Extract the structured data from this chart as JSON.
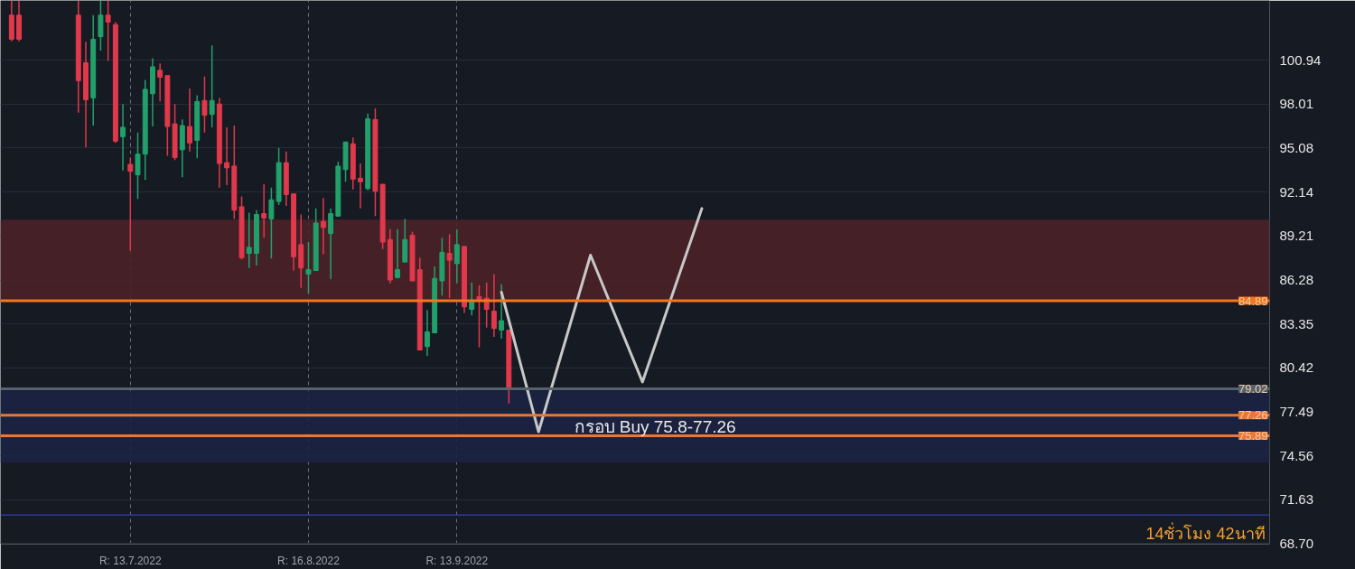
{
  "chart_data": {
    "type": "candlestick",
    "categories": [
      null,
      null,
      null,
      null,
      null,
      null,
      null,
      null,
      null,
      null,
      null,
      null,
      null,
      null,
      null,
      null,
      null,
      "R: 13.7.2022",
      null,
      null,
      null,
      null,
      null,
      null,
      null,
      null,
      null,
      null,
      null,
      null,
      null,
      null,
      null,
      null,
      null,
      null,
      null,
      null,
      null,
      null,
      null,
      "R: 16.8.2022",
      null,
      null,
      null,
      null,
      null,
      null,
      null,
      null,
      null,
      null,
      null,
      null,
      null,
      null,
      null,
      null,
      null,
      null,
      null,
      "R: 13.9.2022",
      null,
      null,
      null,
      null,
      null,
      null,
      null,
      null,
      null,
      null,
      null,
      null,
      null,
      null,
      null,
      null,
      null,
      null,
      null,
      null,
      null,
      null,
      null,
      null,
      null,
      null,
      null,
      null,
      null,
      null,
      null,
      null,
      null,
      null,
      null,
      null,
      null,
      null,
      null,
      null,
      null,
      null,
      null,
      null,
      null,
      null,
      null,
      null,
      null,
      null,
      null,
      null,
      null,
      null,
      null,
      null,
      null,
      null,
      null,
      null,
      null,
      null,
      null,
      null,
      null,
      null,
      null,
      null,
      null,
      null,
      null,
      null,
      null,
      null,
      null,
      null,
      null,
      null,
      null,
      null,
      null,
      null,
      null,
      null,
      null,
      null,
      null,
      null,
      null,
      null,
      null,
      null,
      null,
      null,
      null,
      null,
      null,
      null,
      null,
      null,
      null,
      null,
      null,
      null,
      null,
      null,
      null,
      null,
      null
    ],
    "series": [
      {
        "ohlc": [
          null,
          [
            103.95,
            104.9,
            102.2,
            102.34
          ],
          [
            103.95,
            104.9,
            102.2,
            102.34
          ],
          null,
          null,
          null,
          null,
          null,
          null,
          null,
          [
            103.95,
            104.9,
            97.45,
            99.58
          ],
          [
            100.78,
            102.17,
            95.14,
            98.31
          ],
          [
            98.43,
            103.95,
            96.58,
            102.34
          ],
          [
            102.51,
            104.9,
            101.59,
            103.95
          ],
          [
            103.95,
            104.9,
            100.9,
            103.49
          ],
          [
            103.32,
            103.49,
            95.43,
            95.55
          ],
          [
            95.84,
            98.02,
            93.59,
            96.47
          ],
          [
            93.99,
            94.45,
            88.23,
            93.53
          ],
          [
            93.3,
            96.12,
            91.69,
            94.68
          ],
          [
            94.68,
            99.63,
            92.96,
            99.0
          ],
          [
            98.71,
            101.07,
            96.52,
            100.5
          ],
          [
            100.27,
            100.73,
            98.19,
            99.81
          ],
          [
            99.92,
            99.92,
            94.57,
            96.52
          ],
          [
            96.7,
            98.02,
            94.28,
            94.45
          ],
          [
            94.97,
            96.99,
            93.13,
            96.58
          ],
          [
            96.52,
            99.06,
            94.86,
            95.43
          ],
          [
            95.6,
            98.6,
            94.4,
            98.19
          ],
          [
            98.25,
            99.86,
            96.12,
            97.27
          ],
          [
            97.33,
            101.94,
            96.47,
            98.25
          ],
          [
            98.02,
            98.43,
            92.44,
            94.05
          ],
          [
            94.11,
            96.47,
            92.61,
            93.76
          ],
          [
            93.88,
            96.58,
            90.36,
            90.94
          ],
          [
            91.17,
            91.86,
            87.66,
            87.77
          ],
          [
            88.06,
            90.77,
            87.08,
            88.46
          ],
          [
            88.06,
            90.94,
            87.25,
            90.65
          ],
          [
            90.71,
            92.67,
            89.1,
            90.42
          ],
          [
            90.36,
            92.44,
            87.72,
            91.63
          ],
          [
            91.52,
            95.09,
            91.29,
            94.11
          ],
          [
            94.11,
            94.86,
            91.23,
            91.98
          ],
          [
            92.03,
            92.03,
            86.91,
            87.83
          ],
          [
            88.64,
            90.65,
            85.76,
            87.08
          ],
          [
            86.68,
            88.81,
            85.36,
            86.97
          ],
          [
            86.91,
            91.06,
            86.91,
            90.08
          ],
          [
            90.19,
            91.75,
            88.0,
            89.79
          ],
          [
            89.38,
            91.06,
            86.34,
            90.71
          ],
          [
            90.54,
            94.17,
            90.54,
            93.88
          ],
          [
            93.65,
            95.49,
            92.84,
            95.49
          ],
          [
            95.37,
            95.78,
            92.32,
            93.01
          ],
          [
            93.07,
            94.05,
            91.06,
            92.84
          ],
          [
            92.38,
            97.39,
            92.26,
            97.04
          ],
          [
            96.99,
            97.73,
            90.54,
            92.2
          ],
          [
            92.67,
            92.67,
            88.35,
            88.81
          ],
          [
            88.98,
            89.67,
            86.05,
            86.28
          ],
          [
            86.45,
            89.67,
            86.39,
            86.97
          ],
          [
            87.48,
            90.36,
            87.48,
            88.98
          ],
          [
            89.27,
            89.5,
            86.22,
            86.22
          ],
          [
            86.97,
            87.77,
            81.61,
            81.61
          ],
          [
            81.84,
            84.26,
            81.21,
            82.82
          ],
          [
            82.76,
            87.19,
            82.76,
            86.39
          ],
          [
            86.22,
            89.1,
            85.24,
            88.12
          ],
          [
            88.06,
            89.33,
            85.07,
            87.6
          ],
          [
            87.37,
            89.67,
            86.05,
            88.64
          ],
          [
            88.52,
            88.52,
            84.09,
            84.49
          ],
          [
            84.32,
            86.11,
            83.92,
            84.95
          ],
          [
            85.18,
            85.93,
            81.79,
            84.95
          ],
          [
            85.07,
            86.11,
            83.11,
            84.32
          ],
          [
            84.2,
            86.68,
            82.48,
            83.05
          ],
          [
            82.94,
            85.99,
            82.36,
            83.57
          ],
          [
            82.94,
            82.94,
            78.05,
            79.02
          ],
          null,
          null,
          null,
          null,
          null,
          null,
          null,
          null,
          null,
          null,
          null,
          null,
          null,
          null,
          null,
          null,
          null,
          null,
          null,
          null,
          null,
          null,
          null,
          null,
          null,
          null,
          null,
          null,
          null,
          null,
          null,
          null,
          null,
          null,
          null,
          null,
          null,
          null,
          null,
          null,
          null,
          null,
          null,
          null,
          null,
          null,
          null,
          null,
          null,
          null,
          null,
          null,
          null,
          null,
          null,
          null,
          null,
          null,
          null,
          null,
          null,
          null,
          null,
          null,
          null,
          null,
          null,
          null,
          null,
          null,
          null,
          null,
          null,
          null,
          null,
          null,
          null,
          null,
          null,
          null,
          null,
          null,
          null,
          null,
          null,
          null,
          null,
          null,
          null,
          null,
          null,
          null,
          null,
          null,
          null,
          null,
          null,
          null,
          null,
          null,
          null,
          null
        ]
      },
      {
        "type": "line",
        "color": "#c8c8c8",
        "values": [
          null,
          null,
          null,
          null,
          null,
          null,
          null,
          null,
          null,
          null,
          null,
          null,
          null,
          null,
          null,
          null,
          null,
          null,
          null,
          null,
          null,
          null,
          null,
          null,
          null,
          null,
          null,
          null,
          null,
          null,
          null,
          null,
          null,
          null,
          null,
          null,
          null,
          null,
          null,
          null,
          null,
          null,
          null,
          null,
          null,
          null,
          null,
          null,
          null,
          null,
          null,
          null,
          null,
          null,
          null,
          null,
          null,
          null,
          null,
          null,
          null,
          null,
          null,
          null,
          null,
          null,
          null,
          85.47,
          null,
          null,
          null,
          null,
          76.16,
          null,
          null,
          null,
          null,
          null,
          null,
          87.94,
          null,
          null,
          null,
          null,
          null,
          null,
          79.48,
          null,
          null,
          null,
          null,
          null,
          null,
          null,
          91.05,
          null,
          null,
          null,
          null,
          null,
          null,
          null,
          null,
          null,
          null,
          null,
          null,
          null,
          null,
          null,
          null,
          null,
          null,
          null,
          null,
          null,
          null,
          null,
          null,
          null,
          null,
          null,
          null,
          null,
          null,
          null,
          null,
          null,
          null,
          null,
          null,
          null,
          null,
          null,
          null,
          null,
          null,
          null,
          null,
          null,
          null,
          null,
          null,
          null,
          null,
          null,
          null,
          null,
          null,
          null,
          null,
          null,
          null,
          null,
          null,
          null,
          null,
          null,
          null,
          null,
          null,
          null,
          null,
          null,
          null,
          null,
          null,
          null,
          null,
          null,
          null
        ]
      }
    ],
    "ylim": [
      68.66,
      104.93
    ],
    "yticks": [
      {
        "value": 68.7,
        "label": "68.70"
      },
      71.63,
      74.56,
      77.49,
      80.42,
      83.35,
      86.28,
      89.21,
      92.14,
      95.08,
      98.01,
      100.94
    ],
    "grid": true,
    "ref_lines": [
      {
        "axis": "y",
        "value": 84.89,
        "label": "84.89",
        "color": "#f0761f"
      },
      {
        "axis": "y",
        "value": 77.26,
        "label": "77.26",
        "color": "#e8783a"
      },
      {
        "axis": "y",
        "value": 75.89,
        "label": "75.89",
        "color": "#e8783a"
      },
      {
        "axis": "y",
        "value": 79.02,
        "label": "79.02",
        "color": "#55636e"
      },
      {
        "axis": "y",
        "value": 70.61,
        "color": "#2b3aa0"
      }
    ],
    "bands": [
      {
        "axis": "y",
        "from": 84.89,
        "to": 90.3,
        "color": "#4a2228"
      },
      {
        "axis": "y",
        "from": 74.12,
        "to": 78.9,
        "color": "#1c2444"
      }
    ],
    "annotations": [
      "กรอบ Buy 75.8-77.26",
      "14ชั่วโมง 42นาที"
    ]
  }
}
